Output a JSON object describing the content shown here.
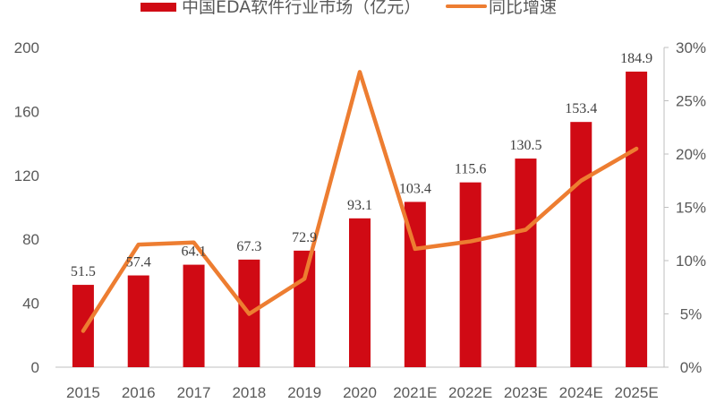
{
  "chart_data": {
    "type": "bar+line",
    "categories": [
      "2015",
      "2016",
      "2017",
      "2018",
      "2019",
      "2020",
      "2021E",
      "2022E",
      "2023E",
      "2024E",
      "2025E"
    ],
    "series": [
      {
        "name": "中国EDA软件行业市场（亿元）",
        "type": "bar",
        "axis": "left",
        "color": "#D00A14",
        "values": [
          51.5,
          57.4,
          64.1,
          67.3,
          72.9,
          93.1,
          103.4,
          115.6,
          130.5,
          153.4,
          184.9
        ]
      },
      {
        "name": "同比增速",
        "type": "line",
        "axis": "right",
        "color": "#ED7D31",
        "values": [
          3.4,
          11.5,
          11.7,
          5.0,
          8.3,
          27.7,
          11.1,
          11.8,
          12.9,
          17.5,
          20.5
        ]
      }
    ],
    "data_labels": [
      "51.5",
      "57.4",
      "64.1",
      "67.3",
      "72.9",
      "93.1",
      "103.4",
      "115.6",
      "130.5",
      "153.4",
      "184.9"
    ],
    "y_left": {
      "ylim": [
        0,
        200
      ],
      "ticks": [
        "0",
        "40",
        "80",
        "120",
        "160",
        "200"
      ]
    },
    "y_right": {
      "ylim": [
        0,
        30
      ],
      "ticks": [
        "0%",
        "5%",
        "10%",
        "15%",
        "20%",
        "25%",
        "30%"
      ]
    },
    "grid": false,
    "legend_position": "top"
  }
}
